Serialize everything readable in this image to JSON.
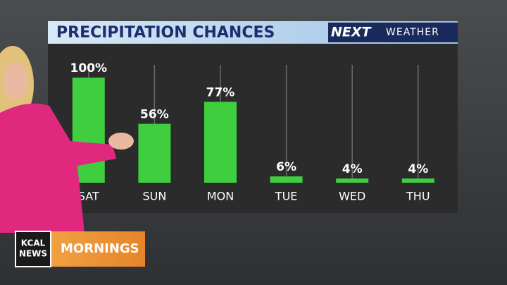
{
  "chart_data": {
    "type": "bar",
    "title": "PRECIPITATION CHANCES",
    "categories": [
      "SAT",
      "SUN",
      "MON",
      "TUE",
      "WED",
      "THU"
    ],
    "values": [
      100,
      56,
      77,
      6,
      4,
      4
    ],
    "value_labels": [
      "100%",
      "56%",
      "77%",
      "6%",
      "4%",
      "4%"
    ],
    "color": "#3fce3f"
  },
  "branding": {
    "logo_main": "NEXT",
    "logo_sub": "WEATHER",
    "station": [
      "KCAL",
      "NEWS"
    ],
    "show": "MORNINGS"
  }
}
